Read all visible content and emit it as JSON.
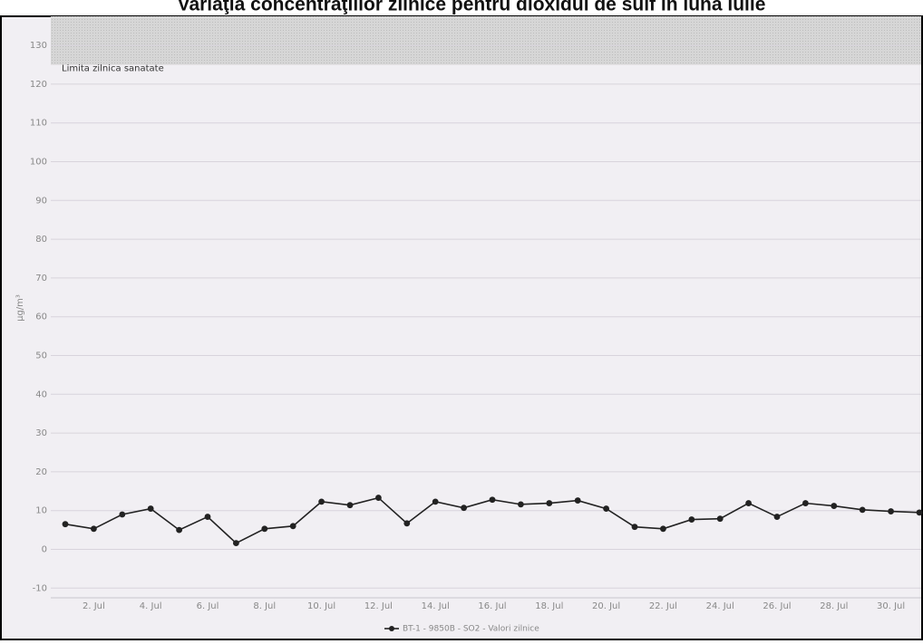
{
  "chart_data": {
    "type": "line",
    "title": "Variaţia concentraţiilor zilnice pentru dioxidul de sulf în luna iulie",
    "y_label": "µg/m³",
    "categories": [
      null,
      "2. Jul",
      null,
      "4. Jul",
      null,
      "6. Jul",
      null,
      "8. Jul",
      null,
      "10. Jul",
      null,
      "12. Jul",
      null,
      "14. Jul",
      null,
      "16. Jul",
      null,
      "18. Jul",
      null,
      "20. Jul",
      null,
      "22. Jul",
      null,
      "24. Jul",
      null,
      "26. Jul",
      null,
      "28. Jul",
      null,
      "30. Jul",
      null
    ],
    "series": [
      {
        "name": "BT-1 - 9850B - SO2 - Valori zilnice",
        "color": "#222222",
        "values": [
          6.5,
          5.3,
          9,
          10.5,
          5,
          8.4,
          1.6,
          5.3,
          6,
          12.3,
          11.4,
          13.3,
          6.7,
          12.3,
          10.7,
          12.8,
          11.6,
          11.9,
          12.6,
          10.5,
          5.8,
          5.3,
          7.7,
          7.9,
          11.9,
          8.4,
          11.9,
          11.2,
          10.2,
          9.8,
          9.5
        ]
      }
    ],
    "ylim": [
      -12.5,
      137.5
    ],
    "yticks": [
      -10,
      0,
      10,
      20,
      30,
      40,
      50,
      60,
      70,
      80,
      90,
      100,
      110,
      120,
      130
    ],
    "grid": true,
    "plot_band": {
      "from": 125,
      "label": "Limita zilnica sanatate"
    },
    "legend": "bottom"
  }
}
